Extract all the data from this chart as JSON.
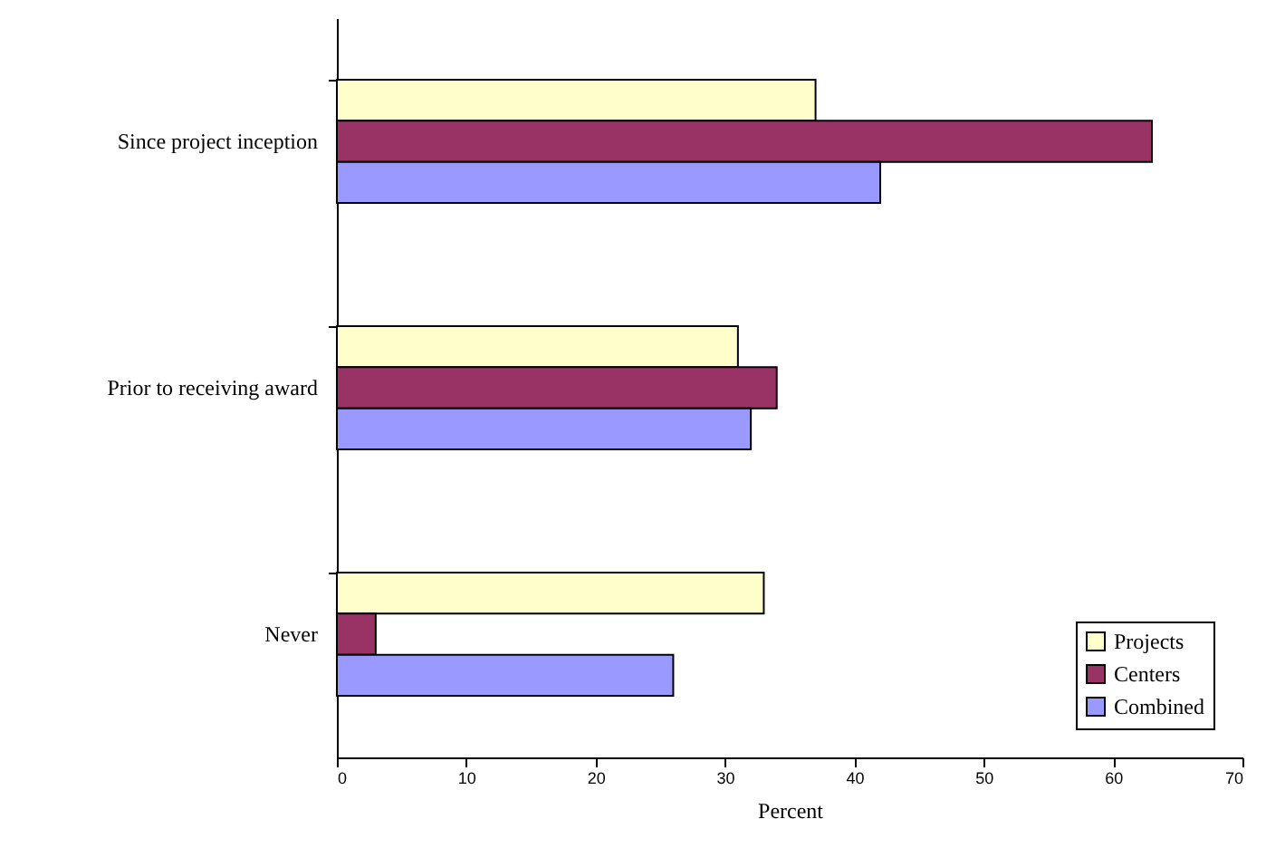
{
  "chart_data": {
    "type": "bar",
    "orientation": "horizontal",
    "xlabel": "Percent",
    "categories": [
      "Since project inception",
      "Prior to receiving award",
      "Never"
    ],
    "series": [
      {
        "name": "Projects",
        "color": "#ffffcc",
        "values": [
          37,
          31,
          33
        ]
      },
      {
        "name": "Centers",
        "color": "#993366",
        "values": [
          63,
          34,
          3
        ]
      },
      {
        "name": "Combined",
        "color": "#9999ff",
        "values": [
          42,
          32,
          26
        ]
      }
    ],
    "xlim": [
      0,
      70
    ],
    "xticks": [
      0,
      10,
      20,
      30,
      40,
      50,
      60,
      70
    ],
    "grid": false,
    "legend": "bottom right"
  }
}
